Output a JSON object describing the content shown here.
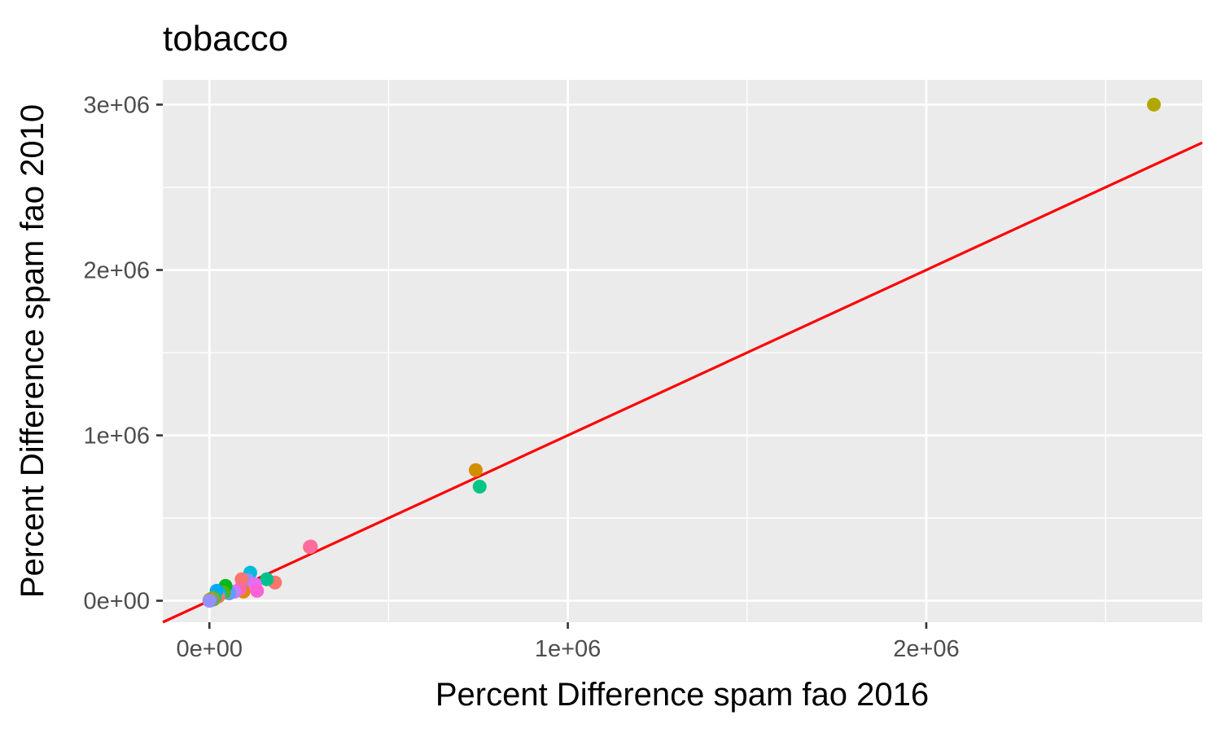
{
  "chart_data": {
    "type": "scatter",
    "title": "tobacco",
    "xlabel": "Percent Difference spam fao 2016",
    "ylabel": "Percent Difference spam fao 2010",
    "xlim": [
      -130000,
      2770000
    ],
    "ylim": [
      -130000,
      3150000
    ],
    "x_ticks": [
      {
        "value": 0,
        "label": "0e+00"
      },
      {
        "value": 1000000,
        "label": "1e+06"
      },
      {
        "value": 2000000,
        "label": "2e+06"
      }
    ],
    "y_ticks": [
      {
        "value": 0,
        "label": "0e+00"
      },
      {
        "value": 1000000,
        "label": "1e+06"
      },
      {
        "value": 2000000,
        "label": "2e+06"
      },
      {
        "value": 3000000,
        "label": "3e+06"
      }
    ],
    "x_minor": [
      500000,
      1500000,
      2500000
    ],
    "y_minor": [
      500000,
      1500000,
      2500000
    ],
    "grid": true,
    "panel_color": "#ebebeb",
    "grid_color": "#ffffff",
    "reference_line": {
      "slope": 1,
      "intercept": 0,
      "color": "#ff0000"
    },
    "points": [
      {
        "x": 2635000,
        "y": 3000000,
        "color": "#b2a600"
      },
      {
        "x": 743000,
        "y": 790000,
        "color": "#d18f00"
      },
      {
        "x": 754000,
        "y": 690000,
        "color": "#00c584"
      },
      {
        "x": 280000,
        "y": 325000,
        "color": "#f8766d"
      },
      {
        "x": 283000,
        "y": 328000,
        "color": "#ff6c9d"
      },
      {
        "x": 183000,
        "y": 110000,
        "color": "#f8766d"
      },
      {
        "x": 160000,
        "y": 130000,
        "color": "#00c08b"
      },
      {
        "x": 114000,
        "y": 170000,
        "color": "#00bcd8"
      },
      {
        "x": 107000,
        "y": 125000,
        "color": "#8f91ff"
      },
      {
        "x": 127000,
        "y": 100000,
        "color": "#e76bf3"
      },
      {
        "x": 133000,
        "y": 60000,
        "color": "#fc61d5"
      },
      {
        "x": 90000,
        "y": 130000,
        "color": "#f8766d"
      },
      {
        "x": 95000,
        "y": 55000,
        "color": "#e38900"
      },
      {
        "x": 85000,
        "y": 70000,
        "color": "#ff66a8"
      },
      {
        "x": 70000,
        "y": 55000,
        "color": "#c77cff"
      },
      {
        "x": 55000,
        "y": 45000,
        "color": "#619cff"
      },
      {
        "x": 45000,
        "y": 90000,
        "color": "#00b81f"
      },
      {
        "x": 40000,
        "y": 50000,
        "color": "#53b400"
      },
      {
        "x": 30000,
        "y": 40000,
        "color": "#00bfc4"
      },
      {
        "x": 25000,
        "y": 25000,
        "color": "#f8766d"
      },
      {
        "x": 20000,
        "y": 60000,
        "color": "#00a9ff"
      },
      {
        "x": 15000,
        "y": 20000,
        "color": "#00c1a3"
      },
      {
        "x": 12000,
        "y": 8000,
        "color": "#7cae00"
      },
      {
        "x": 8000,
        "y": 15000,
        "color": "#a3a500"
      },
      {
        "x": 6000,
        "y": 5000,
        "color": "#00bae0"
      },
      {
        "x": 4000,
        "y": 3000,
        "color": "#f564e3"
      },
      {
        "x": 2000,
        "y": 2000,
        "color": "#39b600"
      },
      {
        "x": 1000,
        "y": 1000,
        "color": "#00be67"
      },
      {
        "x": 500,
        "y": 6000,
        "color": "#b79f00"
      },
      {
        "x": 0,
        "y": 0,
        "color": "#9590ff"
      }
    ]
  }
}
